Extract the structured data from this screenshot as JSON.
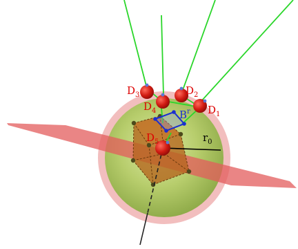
{
  "labels": {
    "d1": "D",
    "d1_sub": "1",
    "d2": "D",
    "d2_sub": "2",
    "d3": "D",
    "d3_sub": "3",
    "d4": "D",
    "d4_sub": "4",
    "d5": "D",
    "d5_sub": "5",
    "b": "B",
    "b_sup": "r",
    "r0": "r",
    "r0_sub": "0"
  },
  "colors": {
    "sphere_inner": "#a9c45c",
    "sphere_shell": "#f2b7b7",
    "plane": "#e05a5a",
    "box_fill": "#b5651d",
    "beam": "#22dd22",
    "detector": "#cc1111",
    "label_red": "#dd0000",
    "label_blue": "#1a2fd0",
    "parallelogram": "#1a2fd0"
  }
}
